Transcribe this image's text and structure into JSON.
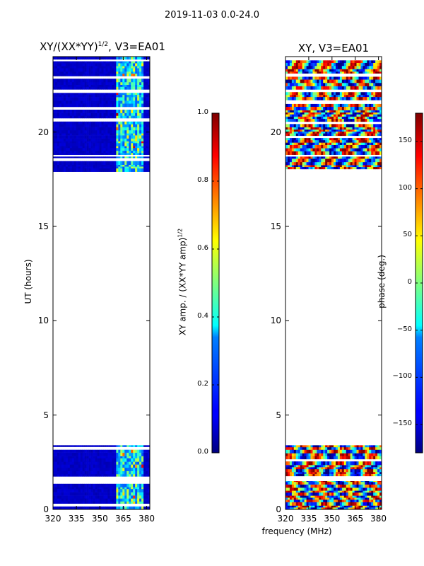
{
  "figure": {
    "suptitle": "2019-11-03 0.0-24.0",
    "xlabel": "frequency (MHz)"
  },
  "colors": {
    "jet_low": "#00007f",
    "jet_blue": "#0000ff",
    "jet_cyan": "#00ffff",
    "jet_green": "#7fff7f",
    "jet_yellow": "#ffff00",
    "jet_red": "#ff0000",
    "jet_high": "#7f0000"
  },
  "chart_data": [
    {
      "name": "amplitude-ratio",
      "type": "heatmap",
      "title_main": "XY/(XX*YY)",
      "title_exp": "1/2",
      "title_tail": ", V3=EA01",
      "xlabel": "",
      "ylabel": "UT (hours)",
      "xlim": [
        320,
        382
      ],
      "ylim": [
        0,
        24
      ],
      "xticks": [
        320,
        335,
        350,
        365,
        380
      ],
      "yticks": [
        0,
        5,
        10,
        15,
        20
      ],
      "colorbar": {
        "label_main": "XY amp. / (XX*YY amp)",
        "label_exp": "1/2",
        "range": [
          0.0,
          1.0
        ],
        "ticks": [
          "0.0",
          "0.2",
          "0.4",
          "0.6",
          "0.8",
          "1.0"
        ]
      },
      "data_blocks_ut": [
        [
          0.0,
          1.5
        ],
        [
          1.6,
          3.4
        ],
        [
          17.9,
          18.7
        ],
        [
          18.8,
          24.0
        ]
      ],
      "active_band_mhz": [
        360,
        378
      ],
      "typical_value": 0.05
    },
    {
      "name": "xy-phase",
      "type": "heatmap",
      "title_main": "XY, V3=EA01",
      "xlabel": "frequency (MHz)",
      "ylabel": "",
      "xlim": [
        320,
        382
      ],
      "ylim": [
        0,
        24
      ],
      "xticks": [
        320,
        335,
        350,
        365,
        380
      ],
      "yticks": [
        0,
        5,
        10,
        15,
        20
      ],
      "colorbar": {
        "label": "phase (deg.)",
        "range": [
          -180,
          180
        ],
        "ticks": [
          "−150",
          "−100",
          "−50",
          "0",
          "50",
          "100",
          "150"
        ]
      },
      "data_blocks_ut": [
        [
          0.0,
          1.5
        ],
        [
          1.6,
          3.4
        ],
        [
          17.9,
          18.7
        ],
        [
          18.8,
          24.0
        ]
      ]
    }
  ]
}
